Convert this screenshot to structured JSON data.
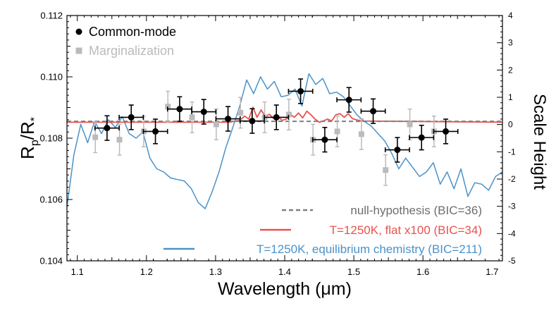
{
  "chart_data": {
    "type": "scatter",
    "xlabel": "Wavelength (μm)",
    "ylabel": "Rp/R*",
    "ylabel_main": "R",
    "ylabel_sub_p": "p",
    "ylabel_slash": "/R",
    "ylabel_sub_star": "*",
    "y2label": "Scale Height",
    "xlim": [
      1.085,
      1.715
    ],
    "ylim": [
      0.104,
      0.112
    ],
    "y2lim": [
      -5,
      4
    ],
    "xticks": [
      1.1,
      1.2,
      1.3,
      1.4,
      1.5,
      1.6,
      1.7
    ],
    "xtick_labels": [
      "1.1",
      "1.2",
      "1.3",
      "1.4",
      "1.5",
      "1.6",
      "1.7"
    ],
    "yticks": [
      0.104,
      0.106,
      0.108,
      0.11,
      0.112
    ],
    "ytick_labels": [
      "0.104",
      "0.106",
      "0.108",
      "0.110",
      "0.112"
    ],
    "y2ticks": [
      -5,
      -4,
      -3,
      -2,
      -1,
      0,
      1,
      2,
      3,
      4
    ],
    "y2tick_labels": [
      "-5",
      "-4",
      "-3",
      "-2",
      "-1",
      "0",
      "1",
      "2",
      "3",
      "4"
    ],
    "grid": false,
    "legend_top_position": "top-left",
    "legend_bottom_position": "bottom-right",
    "legend_top": [
      {
        "label": "Common-mode",
        "color": "#000000",
        "marker": "circle"
      },
      {
        "label": "Marginalization",
        "color": "#bbbbbb",
        "marker": "square"
      }
    ],
    "legend_bottom": [
      {
        "label": "null-hypothesis (BIC=36)",
        "color": "#7f7f7f",
        "text_color": "#6e6e6e",
        "style": "dashed"
      },
      {
        "label": "T=1250K, flat x100 (BIC=34)",
        "color": "#e8524f",
        "text_color": "#e8524f",
        "style": "solid"
      },
      {
        "label": "T=1250K, equilibrium chemistry (BIC=211)",
        "color": "#4a92c8",
        "text_color": "#4a92c8",
        "style": "solid"
      }
    ],
    "series": [
      {
        "name": "Common-mode",
        "type": "scatter",
        "color": "#000000",
        "marker": "circle",
        "x": [
          1.143,
          1.178,
          1.213,
          1.248,
          1.283,
          1.318,
          1.353,
          1.388,
          1.423,
          1.458,
          1.493,
          1.528,
          1.563,
          1.598,
          1.633
        ],
        "y": [
          0.10833,
          0.10868,
          0.10822,
          0.10895,
          0.10886,
          0.10863,
          0.10856,
          0.10868,
          0.10953,
          0.10795,
          0.10925,
          0.10888,
          0.10762,
          0.10802,
          0.10822
        ],
        "xerr": [
          0.0175,
          0.0175,
          0.0175,
          0.0175,
          0.0175,
          0.0175,
          0.0175,
          0.0175,
          0.0175,
          0.0175,
          0.0175,
          0.0175,
          0.0175,
          0.0175,
          0.0175
        ],
        "yerr": [
          0.0004,
          0.0004,
          0.0004,
          0.0004,
          0.0004,
          0.0004,
          0.0004,
          0.0004,
          0.0004,
          0.0004,
          0.0004,
          0.0004,
          0.0004,
          0.0004,
          0.0004
        ]
      },
      {
        "name": "Marginalization",
        "type": "scatter",
        "color": "#bbbbbb",
        "marker": "square",
        "x": [
          1.126,
          1.161,
          1.196,
          1.231,
          1.266,
          1.301,
          1.336,
          1.371,
          1.406,
          1.441,
          1.476,
          1.511,
          1.546,
          1.581,
          1.616
        ],
        "y": [
          0.10803,
          0.10795,
          0.10822,
          0.10903,
          0.10868,
          0.10845,
          0.10883,
          0.10868,
          0.10877,
          0.10795,
          0.10822,
          0.10813,
          0.10696,
          0.10845,
          0.10822
        ],
        "yerr": [
          0.0005,
          0.0005,
          0.0005,
          0.0005,
          0.0005,
          0.0005,
          0.0005,
          0.0005,
          0.0005,
          0.0005,
          0.0005,
          0.0005,
          0.0005,
          0.0005,
          0.0005
        ]
      },
      {
        "name": "null-hypothesis (BIC=36)",
        "type": "line",
        "style": "dashed",
        "color": "#7f7f7f",
        "x": [
          1.085,
          1.715
        ],
        "y": [
          0.10855,
          0.10855
        ]
      },
      {
        "name": "T=1250K, flat x100 (BIC=34)",
        "type": "line",
        "color": "#e8524f",
        "x": [
          1.085,
          1.32,
          1.335,
          1.342,
          1.348,
          1.354,
          1.36,
          1.366,
          1.372,
          1.378,
          1.384,
          1.39,
          1.396,
          1.402,
          1.408,
          1.414,
          1.42,
          1.426,
          1.432,
          1.438,
          1.444,
          1.45,
          1.456,
          1.462,
          1.468,
          1.474,
          1.48,
          1.486,
          1.492,
          1.498,
          1.51,
          1.715
        ],
        "y": [
          0.10852,
          0.10852,
          0.10858,
          0.10872,
          0.10862,
          0.10901,
          0.10868,
          0.10892,
          0.1087,
          0.10878,
          0.10864,
          0.10872,
          0.10858,
          0.10862,
          0.10878,
          0.10868,
          0.10882,
          0.10866,
          0.10888,
          0.10876,
          0.10862,
          0.10852,
          0.10856,
          0.10862,
          0.10856,
          0.10876,
          0.1088,
          0.10868,
          0.1088,
          0.10864,
          0.10856,
          0.10852
        ]
      },
      {
        "name": "T=1250K, equilibrium chemistry (BIC=211)",
        "type": "line",
        "color": "#4a92c8",
        "x": [
          1.085,
          1.095,
          1.105,
          1.115,
          1.125,
          1.135,
          1.145,
          1.155,
          1.165,
          1.175,
          1.185,
          1.195,
          1.205,
          1.215,
          1.225,
          1.235,
          1.245,
          1.255,
          1.265,
          1.275,
          1.285,
          1.295,
          1.305,
          1.315,
          1.325,
          1.335,
          1.345,
          1.355,
          1.365,
          1.375,
          1.385,
          1.395,
          1.405,
          1.415,
          1.425,
          1.435,
          1.445,
          1.455,
          1.465,
          1.475,
          1.485,
          1.495,
          1.505,
          1.515,
          1.525,
          1.535,
          1.545,
          1.555,
          1.565,
          1.575,
          1.585,
          1.595,
          1.605,
          1.615,
          1.625,
          1.635,
          1.645,
          1.655,
          1.665,
          1.675,
          1.685,
          1.695,
          1.705,
          1.715
        ],
        "y": [
          0.10575,
          0.10745,
          0.10845,
          0.10785,
          0.10855,
          0.10815,
          0.1086,
          0.10835,
          0.1087,
          0.10815,
          0.108,
          0.1082,
          0.10735,
          0.107,
          0.1069,
          0.1067,
          0.10665,
          0.1066,
          0.10635,
          0.1059,
          0.1057,
          0.10625,
          0.1069,
          0.1077,
          0.10835,
          0.10905,
          0.1099,
          0.10945,
          0.11,
          0.1096,
          0.10985,
          0.10935,
          0.1094,
          0.1096,
          0.10905,
          0.1101,
          0.10975,
          0.10995,
          0.10945,
          0.1095,
          0.10935,
          0.10905,
          0.10875,
          0.10855,
          0.1084,
          0.10815,
          0.1079,
          0.1075,
          0.107,
          0.10735,
          0.10705,
          0.10675,
          0.1069,
          0.1072,
          0.1065,
          0.1069,
          0.10635,
          0.107,
          0.1061,
          0.10655,
          0.1065,
          0.1063,
          0.10675,
          0.1069
        ]
      }
    ]
  }
}
